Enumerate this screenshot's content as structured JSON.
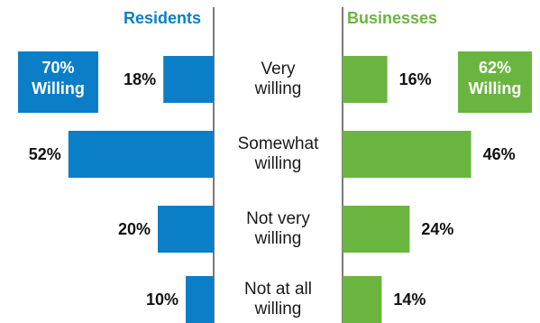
{
  "chart_data": {
    "type": "bar",
    "categories": [
      [
        "Very",
        "willing"
      ],
      [
        "Somewhat",
        "willing"
      ],
      [
        "Not very",
        "willing"
      ],
      [
        "Not at all",
        "willing"
      ]
    ],
    "series": [
      {
        "name": "Residents",
        "values": [
          18,
          52,
          20,
          10
        ],
        "labels": [
          "18%",
          "52%",
          "20%",
          "10%"
        ],
        "color": "#0A7FC8",
        "direction": "left",
        "summary": [
          "70%",
          "Willing"
        ]
      },
      {
        "name": "Businesses",
        "values": [
          16,
          46,
          24,
          14
        ],
        "labels": [
          "16%",
          "46%",
          "24%",
          "14%"
        ],
        "color": "#6AB53F",
        "direction": "right",
        "summary": [
          "62%",
          "Willing"
        ]
      }
    ],
    "divider_color": "#222222",
    "grid": false
  }
}
